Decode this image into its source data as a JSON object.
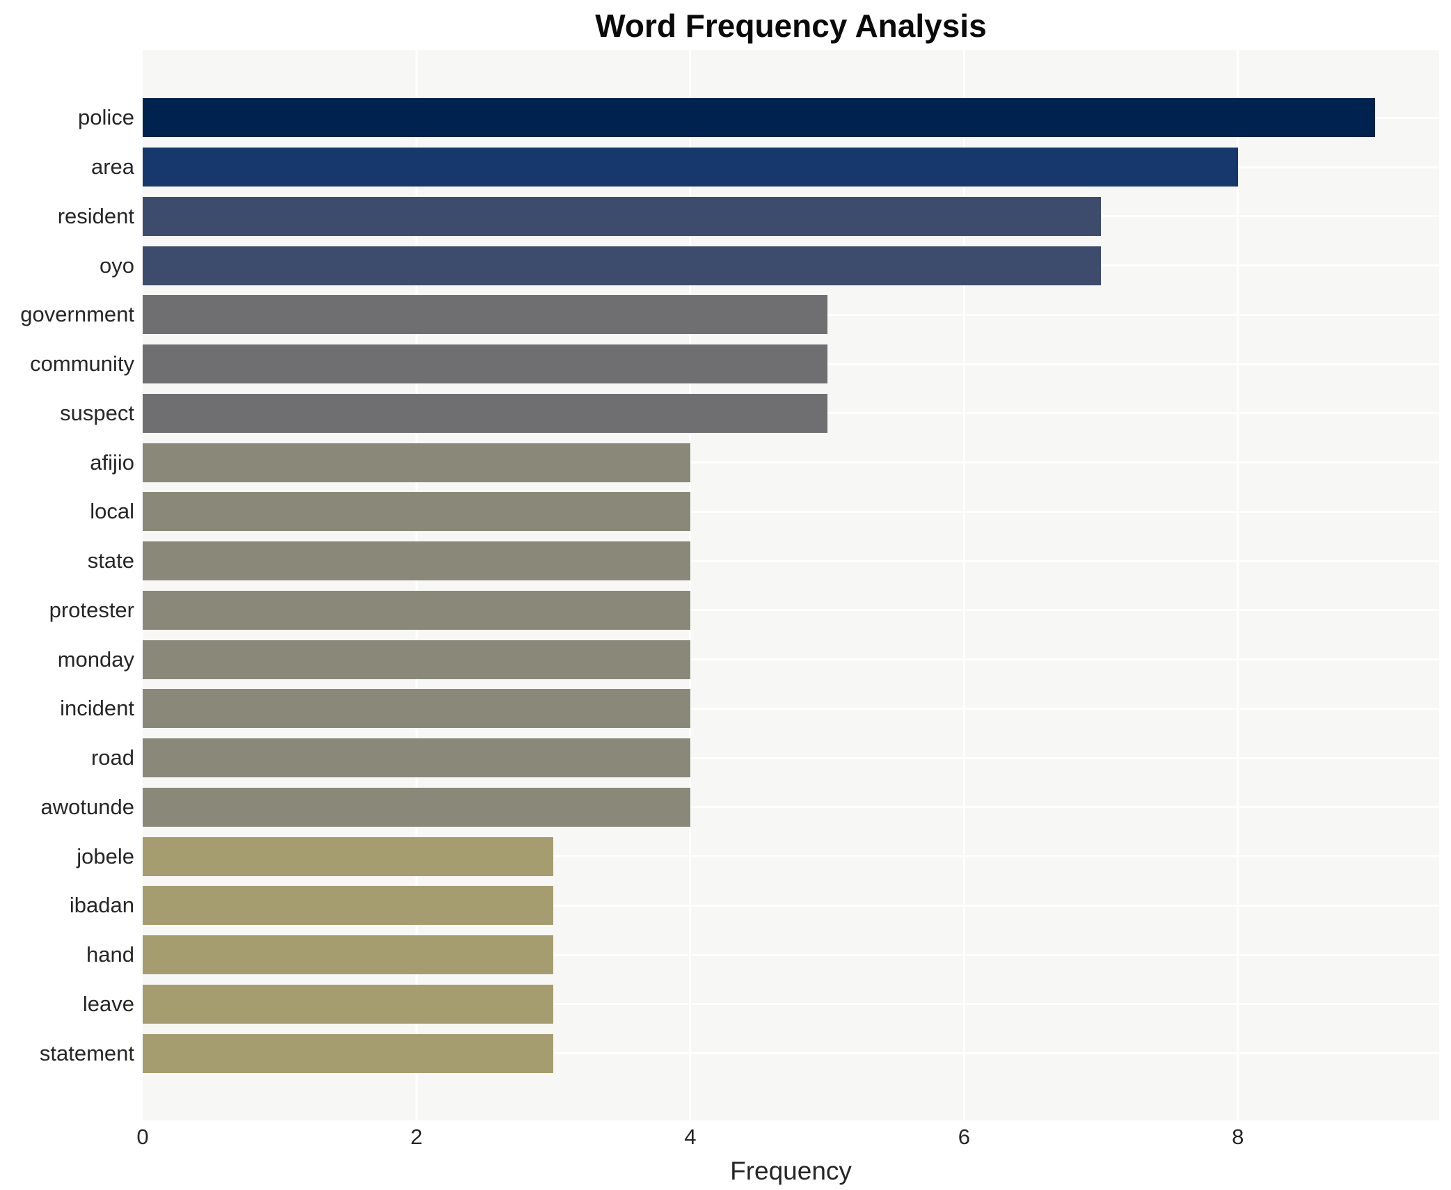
{
  "chart_data": {
    "type": "bar",
    "orientation": "horizontal",
    "title": "Word Frequency Analysis",
    "xlabel": "Frequency",
    "ylabel": "",
    "categories": [
      "police",
      "area",
      "resident",
      "oyo",
      "government",
      "community",
      "suspect",
      "afijio",
      "local",
      "state",
      "protester",
      "monday",
      "incident",
      "road",
      "awotunde",
      "jobele",
      "ibadan",
      "hand",
      "leave",
      "statement"
    ],
    "values": [
      9,
      8,
      7,
      7,
      5,
      5,
      5,
      4,
      4,
      4,
      4,
      4,
      4,
      4,
      4,
      3,
      3,
      3,
      3,
      3
    ],
    "bar_colors": [
      "#00224e",
      "#17386d",
      "#3d4b6c",
      "#3d4b6c",
      "#6f6f71",
      "#6f6f71",
      "#6f6f71",
      "#8a8878",
      "#8a8878",
      "#8a8878",
      "#8a8878",
      "#8a8878",
      "#8a8878",
      "#8a8878",
      "#8a8878",
      "#a59d6f",
      "#a59d6f",
      "#a59d6f",
      "#a59d6f",
      "#a59d6f"
    ],
    "xticks": [
      0,
      2,
      4,
      6,
      8
    ],
    "xlim": [
      0,
      9.47
    ],
    "grid": true,
    "legend_position": "none",
    "plot_background": "#f7f7f6",
    "grid_color": "#ffffff",
    "text_color": "#262626",
    "title_color": "#0a0a0a"
  }
}
